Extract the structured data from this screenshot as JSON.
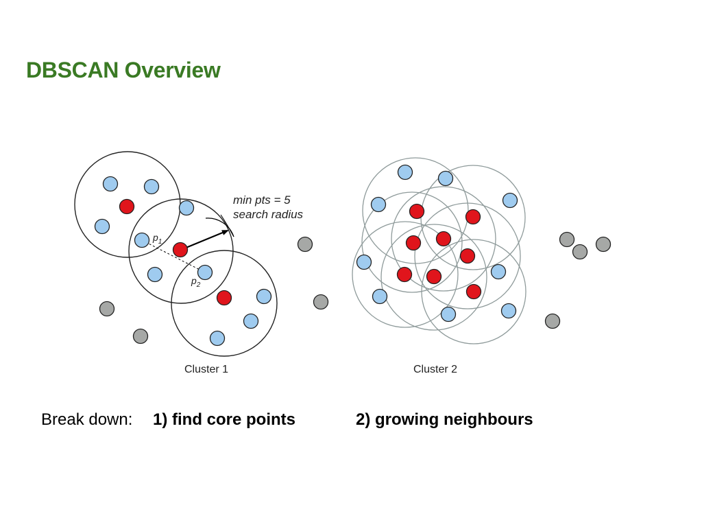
{
  "title": "DBSCAN Overview",
  "colors": {
    "title": "#3a7a24",
    "core_point": "#e0151c",
    "border_point": "#9fcbef",
    "noise_point": "#a6a8a6",
    "point_outline": "#222222",
    "cluster1_circle": "#222222",
    "cluster2_circle": "#8e9a9a"
  },
  "legend_annotation": {
    "min_pts": "min pts = 5",
    "search_radius": "search radius"
  },
  "point_labels": {
    "p1": "p",
    "p1_sub": "1",
    "p2": "p",
    "p2_sub": "2"
  },
  "clusters": [
    {
      "label": "Cluster 1"
    },
    {
      "label": "Cluster 2"
    }
  ],
  "footer": {
    "breakdown_label": "Break down:",
    "step_1": "1) find core points",
    "step_2": "2)  growing neighbours"
  }
}
